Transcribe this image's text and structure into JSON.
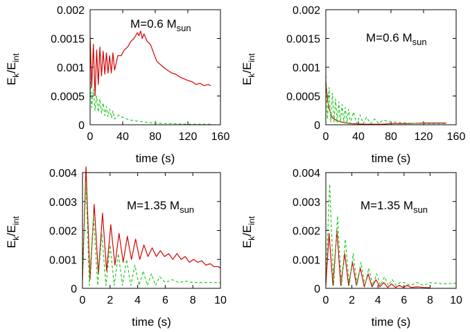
{
  "colors": {
    "red": "#d40000",
    "green": "#22cc22"
  },
  "chart_data": [
    {
      "type": "line",
      "xlabel": "time (s)",
      "ylabel": [
        "E",
        "k",
        "/E",
        "int"
      ],
      "xlim": [
        0,
        160
      ],
      "ylim": [
        0,
        0.002
      ],
      "xticks": [
        "0",
        "40",
        "80",
        "120",
        "160"
      ],
      "yticks": [
        "0",
        "0.0005",
        "0.001",
        "0.0015",
        "0.002"
      ],
      "annotation": [
        "M=0.6 M",
        "sun"
      ],
      "series": [
        {
          "color": "red",
          "style": "solid",
          "x": [
            0,
            2,
            4,
            6,
            8,
            10,
            12,
            14,
            16,
            18,
            20,
            22,
            24,
            26,
            28,
            30,
            34,
            38,
            42,
            46,
            50,
            54,
            58,
            60,
            62,
            64,
            66,
            70,
            74,
            78,
            82,
            86,
            90,
            95,
            100,
            105,
            110,
            115,
            120,
            125,
            130,
            135,
            140,
            145,
            148
          ],
          "y": [
            0.00153,
            0.00065,
            0.0014,
            0.0005,
            0.0013,
            0.0007,
            0.00135,
            0.00085,
            0.00128,
            0.00088,
            0.00125,
            0.0009,
            0.0012,
            0.0009,
            0.00125,
            0.00095,
            0.0012,
            0.0012,
            0.0013,
            0.00135,
            0.00145,
            0.0015,
            0.0016,
            0.00155,
            0.00163,
            0.0015,
            0.00158,
            0.00145,
            0.0014,
            0.00125,
            0.0011,
            0.00105,
            0.001,
            0.00095,
            0.0009,
            0.00088,
            0.00083,
            0.0008,
            0.00077,
            0.00075,
            0.0007,
            0.00072,
            0.00068,
            0.0007,
            0.00068
          ]
        },
        {
          "color": "green",
          "style": "dashed",
          "x": [
            0,
            2,
            4,
            6,
            8,
            10,
            12,
            14,
            16,
            18,
            20,
            22,
            24,
            26,
            28,
            30,
            35,
            40,
            45,
            50,
            60,
            70,
            80,
            90,
            100,
            110,
            120,
            130,
            140,
            148
          ],
          "y": [
            0.00083,
            0.0003,
            0.00062,
            0.00025,
            0.0005,
            0.00022,
            0.00045,
            0.0002,
            0.00038,
            0.00016,
            0.00032,
            0.00014,
            0.00028,
            0.00012,
            0.00024,
            0.0001,
            0.00017,
            0.00013,
            0.0001,
            8e-05,
            6e-05,
            4e-05,
            3e-05,
            2e-05,
            2e-05,
            1.5e-05,
            1e-05,
            1e-05,
            1e-05,
            1e-05
          ]
        }
      ]
    },
    {
      "type": "line",
      "xlabel": "time (s)",
      "ylabel": [
        "E",
        "k",
        "/E",
        "int"
      ],
      "xlim": [
        0,
        160
      ],
      "ylim": [
        0,
        0.002
      ],
      "xticks": [
        "0",
        "40",
        "80",
        "120",
        "160"
      ],
      "yticks": [
        "0",
        "0.0005",
        "0.001",
        "0.0015",
        "0.002"
      ],
      "annotation": [
        "M=0.6 M",
        "sun"
      ],
      "series": [
        {
          "color": "red",
          "style": "solid",
          "x": [
            0,
            2,
            4,
            6,
            8,
            10,
            14,
            18,
            22,
            26,
            30,
            40,
            50,
            60,
            70,
            80,
            90,
            100,
            120,
            140,
            148
          ],
          "y": [
            0.00075,
            0.00045,
            0.00028,
            0.0002,
            0.00012,
            0.0001,
            7e-05,
            5e-05,
            4e-05,
            3e-05,
            2e-05,
            1.5e-05,
            1e-05,
            1e-05,
            1e-05,
            2e-05,
            2e-05,
            2e-05,
            3e-05,
            3e-05,
            3e-05
          ]
        },
        {
          "color": "green",
          "style": "dashed",
          "x": [
            0,
            2,
            4,
            6,
            8,
            10,
            12,
            14,
            16,
            18,
            20,
            22,
            24,
            26,
            28,
            30,
            34,
            38,
            42,
            46,
            50,
            55,
            60,
            65,
            70,
            80,
            90,
            100,
            120,
            140,
            148
          ],
          "y": [
            0.00085,
            0.0001,
            0.00065,
            5e-05,
            0.00055,
            5e-05,
            0.00045,
            4e-05,
            0.0004,
            4e-05,
            0.00035,
            3e-05,
            0.0003,
            3e-05,
            0.00027,
            2e-05,
            0.00022,
            2e-05,
            0.00017,
            2e-05,
            0.00013,
            2e-05,
            0.0001,
            2e-05,
            8e-05,
            5e-05,
            4e-05,
            3e-05,
            2e-05,
            2e-05,
            2e-05
          ]
        }
      ]
    },
    {
      "type": "line",
      "xlabel": "time (s)",
      "ylabel": [
        "E",
        "k",
        "/E",
        "int"
      ],
      "xlim": [
        0,
        10
      ],
      "ylim": [
        0,
        0.004
      ],
      "xticks": [
        "0",
        "2",
        "4",
        "6",
        "8",
        "10"
      ],
      "yticks": [
        "0",
        "0.001",
        "0.002",
        "0.003",
        "0.004"
      ],
      "annotation": [
        "M=1.35 M",
        "sun"
      ],
      "series": [
        {
          "color": "red",
          "style": "solid",
          "x": [
            0,
            0.25,
            0.55,
            0.85,
            1.15,
            1.45,
            1.75,
            2.05,
            2.35,
            2.65,
            2.95,
            3.25,
            3.55,
            3.85,
            4.15,
            4.45,
            4.75,
            5.05,
            5.35,
            5.65,
            5.95,
            6.25,
            6.55,
            6.85,
            7.15,
            7.45,
            7.75,
            8.05,
            8.35,
            8.65,
            8.95,
            9.25,
            9.55,
            9.85,
            10
          ],
          "y": [
            0.0003,
            0.0042,
            0.0003,
            0.0029,
            0.0005,
            0.0026,
            0.0006,
            0.0022,
            0.0008,
            0.0019,
            0.0009,
            0.0018,
            0.001,
            0.0017,
            0.001,
            0.0015,
            0.0011,
            0.0014,
            0.0011,
            0.0013,
            0.0011,
            0.0012,
            0.001,
            0.0012,
            0.001,
            0.0011,
            0.0009,
            0.001,
            0.0009,
            0.00095,
            0.0008,
            0.00085,
            0.00075,
            0.00075,
            0.0007
          ]
        },
        {
          "color": "green",
          "style": "dashed",
          "x": [
            0,
            0.25,
            0.5,
            0.8,
            1.1,
            1.4,
            1.7,
            2.0,
            2.3,
            2.6,
            2.9,
            3.2,
            3.5,
            3.8,
            4.1,
            4.4,
            4.7,
            5.0,
            5.3,
            5.6,
            6.0,
            6.5,
            7.0,
            7.5,
            8.0,
            8.5,
            9.0,
            9.5,
            10
          ],
          "y": [
            0.0004,
            0.0037,
            0.0001,
            0.0025,
            0.0001,
            0.0019,
            0.0001,
            0.0015,
            0.0001,
            0.0012,
            0.0001,
            0.001,
            0.0001,
            0.0008,
            0.0001,
            0.0006,
            0.0001,
            0.0005,
            0.0001,
            0.0004,
            0.0002,
            0.0003,
            0.0002,
            0.00025,
            0.0002,
            0.0002,
            0.0002,
            0.0002,
            0.0002
          ]
        }
      ]
    },
    {
      "type": "line",
      "xlabel": "time (s)",
      "ylabel": [
        "E",
        "k",
        "/E",
        "int"
      ],
      "xlim": [
        0,
        10
      ],
      "ylim": [
        0,
        0.004
      ],
      "xticks": [
        "0",
        "2",
        "4",
        "6",
        "8",
        "10"
      ],
      "yticks": [
        "0",
        "0.001",
        "0.002",
        "0.003",
        "0.004"
      ],
      "annotation": [
        "M=1.35 M",
        "sun"
      ],
      "series": [
        {
          "color": "red",
          "style": "solid",
          "x": [
            0,
            0.25,
            0.55,
            0.85,
            1.15,
            1.45,
            1.75,
            2.05,
            2.35,
            2.65,
            2.95,
            3.25,
            3.55,
            3.85,
            4.15,
            4.45,
            4.75,
            5.05,
            5.35,
            5.65,
            5.95,
            6.25,
            6.55,
            7.0,
            7.5,
            8.0
          ],
          "y": [
            0.0001,
            0.0019,
            0.0001,
            0.002,
            0.0001,
            0.0012,
            0.0001,
            0.0009,
            0.0001,
            0.0007,
            5e-05,
            0.0005,
            5e-05,
            0.0003,
            5e-05,
            0.0002,
            3e-05,
            0.00015,
            3e-05,
            0.0001,
            3e-05,
            0.0001,
            3e-05,
            5e-05,
            3e-05,
            2e-05
          ]
        },
        {
          "color": "green",
          "style": "dashed",
          "x": [
            0,
            0.3,
            0.6,
            0.9,
            1.2,
            1.5,
            1.8,
            2.1,
            2.4,
            2.7,
            3.0,
            3.3,
            3.6,
            3.9,
            4.2,
            4.5,
            4.8,
            5.1,
            5.4,
            5.7,
            6.0,
            6.5,
            7.0,
            7.5,
            8.0,
            9.0,
            10
          ],
          "y": [
            0.0003,
            0.0036,
            0.0001,
            0.0025,
            0.0001,
            0.0017,
            0.0001,
            0.0012,
            0.0001,
            0.0009,
            0.0001,
            0.0007,
            0.0001,
            0.0005,
            0.0001,
            0.0004,
            0.0001,
            0.0003,
            0.0001,
            0.0002,
            0.0002,
            0.0001,
            0.0002,
            0.0001,
            0.0002,
            0.00015,
            0.00018
          ]
        }
      ]
    }
  ]
}
